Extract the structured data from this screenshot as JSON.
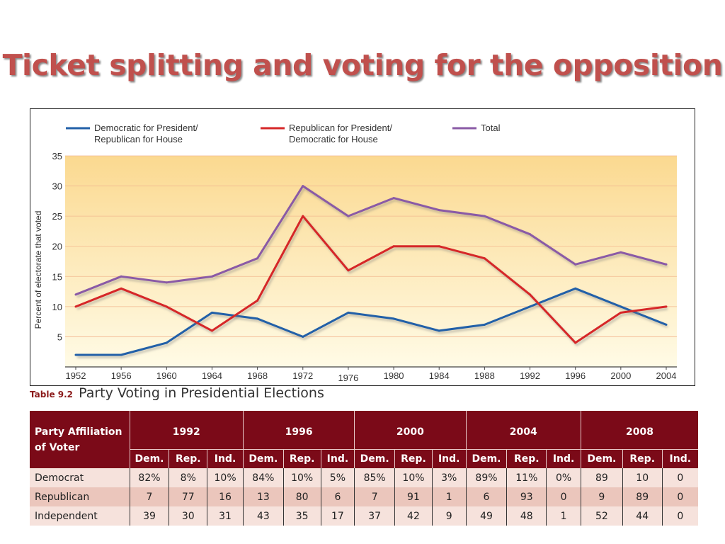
{
  "slide": {
    "title": "Ticket splitting and voting for the opposition"
  },
  "chart_data": {
    "type": "line",
    "ylabel": "Percent of electorate that voted",
    "ylim": [
      0,
      35
    ],
    "yticks": [
      5,
      10,
      15,
      20,
      25,
      30,
      35
    ],
    "grid": "horizontal",
    "legend_placement": "top",
    "background": "gradient light yellow",
    "x": [
      1952,
      1956,
      1960,
      1964,
      1968,
      1972,
      1976,
      1980,
      1984,
      1988,
      1992,
      1996,
      2000,
      2004
    ],
    "xtick_labels": [
      "1952",
      "1956",
      "1960",
      "1964",
      "1968",
      "1972",
      "1976",
      "1980",
      "1984",
      "1988",
      "1992",
      "1996",
      "2000",
      "2004"
    ],
    "series": [
      {
        "name_lines": [
          "Democratic for President/",
          "Republican for House"
        ],
        "color": "#2260a8",
        "values": [
          2,
          2,
          4,
          9,
          8,
          5,
          9,
          8,
          6,
          7,
          10,
          13,
          10,
          7
        ]
      },
      {
        "name_lines": [
          "Republican for President/",
          "Democratic for House"
        ],
        "color": "#d62728",
        "values": [
          10,
          13,
          10,
          6,
          11,
          25,
          16,
          20,
          20,
          18,
          12,
          4,
          9,
          10
        ]
      },
      {
        "name_lines": [
          "Total"
        ],
        "color": "#8a5aa6",
        "values": [
          12,
          15,
          14,
          15,
          18,
          30,
          25,
          28,
          26,
          25,
          22,
          17,
          19,
          17
        ]
      }
    ]
  },
  "table": {
    "number": "Table 9.2",
    "title": "Party Voting in Presidential Elections",
    "row_header": [
      "Party Affiliation",
      "of Voter"
    ],
    "years": [
      "1992",
      "1996",
      "2000",
      "2004",
      "2008"
    ],
    "sub_headers": [
      "Dem.",
      "Rep.",
      "Ind."
    ],
    "rows": [
      {
        "label": "Democrat",
        "cells": [
          "82%",
          "8%",
          "10%",
          "84%",
          "10%",
          "5%",
          "85%",
          "10%",
          "3%",
          "89%",
          "11%",
          "0%",
          "89",
          "10",
          "0"
        ]
      },
      {
        "label": "Republican",
        "cells": [
          "7",
          "77",
          "16",
          "13",
          "80",
          "6",
          "7",
          "91",
          "1",
          "6",
          "93",
          "0",
          "9",
          "89",
          "0"
        ]
      },
      {
        "label": "Independent",
        "cells": [
          "39",
          "30",
          "31",
          "43",
          "35",
          "17",
          "37",
          "42",
          "9",
          "49",
          "48",
          "1",
          "52",
          "44",
          "0"
        ]
      }
    ]
  }
}
